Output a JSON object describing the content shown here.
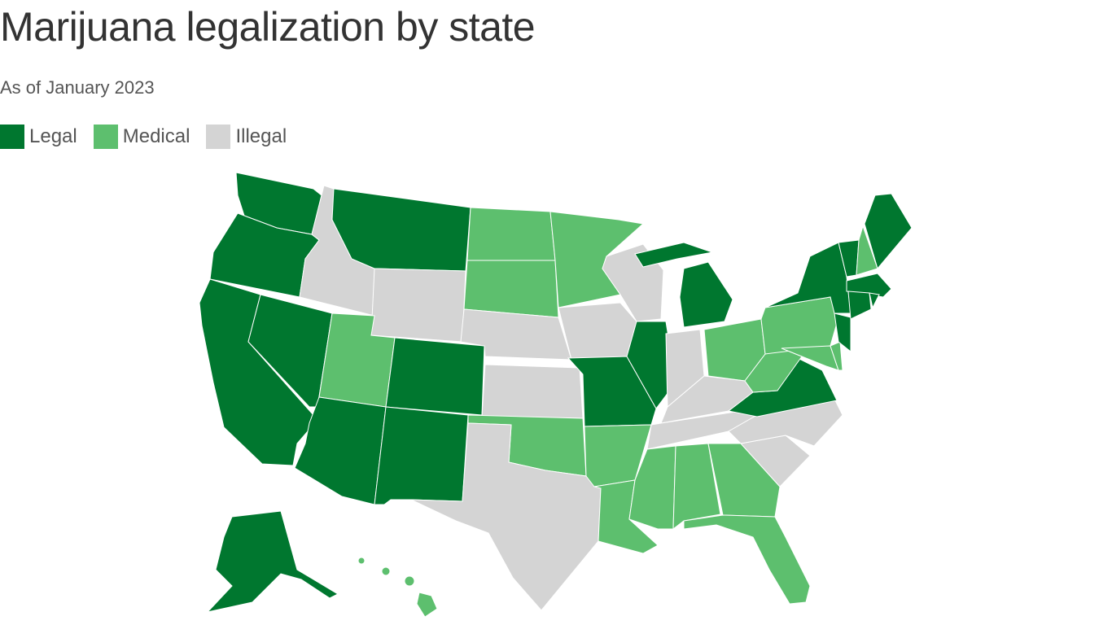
{
  "header": {
    "title": "Marijuana legalization by state",
    "subtitle": "As of January 2023"
  },
  "legend": [
    {
      "label": "Legal",
      "color": "#00772f"
    },
    {
      "label": "Medical",
      "color": "#5dbf6e"
    },
    {
      "label": "Illegal",
      "color": "#d4d4d4"
    }
  ]
}
